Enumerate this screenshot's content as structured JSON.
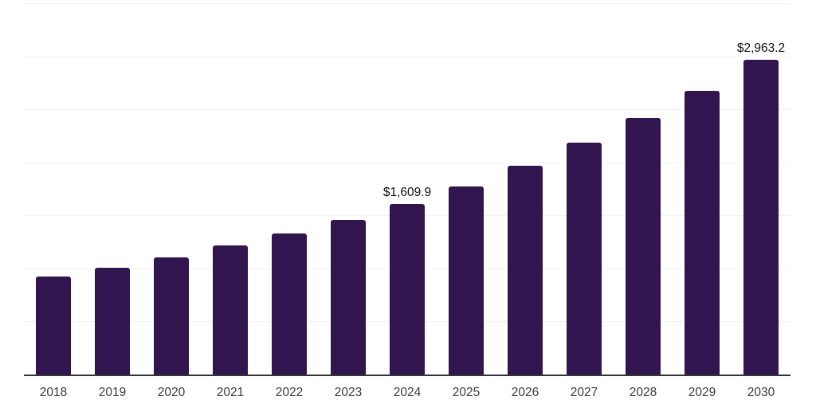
{
  "chart_data": {
    "type": "bar",
    "title": "",
    "xlabel": "",
    "ylabel": "",
    "categories": [
      "2018",
      "2019",
      "2020",
      "2021",
      "2022",
      "2023",
      "2024",
      "2025",
      "2026",
      "2027",
      "2028",
      "2029",
      "2030"
    ],
    "values": [
      925,
      1010,
      1105,
      1215,
      1330,
      1455,
      1609.9,
      1775,
      1965,
      2185,
      2415,
      2675,
      2963.2
    ],
    "data_labels": [
      "",
      "",
      "",
      "",
      "",
      "",
      "$1,609.9",
      "",
      "",
      "",
      "",
      "",
      "$2,963.2"
    ],
    "ylim": [
      0,
      3500
    ],
    "grid_step": 500,
    "grid": "horizontal gridlines only, no y-axis tick labels",
    "legend_position": "none",
    "colors": {
      "bar": "#31154e",
      "gridline": "#f2f2f2",
      "axis_line": "#333333",
      "tick_label": "#3d3d3d",
      "data_label": "#111111",
      "background": "#ffffff"
    }
  }
}
